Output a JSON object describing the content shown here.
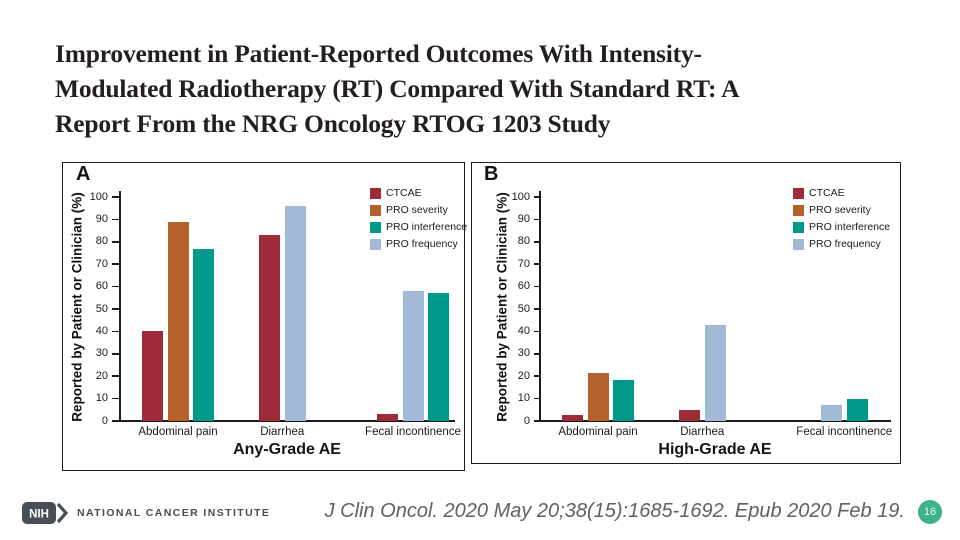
{
  "slide_title": {
    "lines": [
      "Improvement in Patient-Reported Outcomes With Intensity-",
      "Modulated Radiotherapy (RT) Compared With Standard RT: A",
      "Report From the NRG Oncology RTOG 1203 Study"
    ]
  },
  "footer": {
    "logo_acronym": "NIH",
    "logo_text": "NATIONAL CANCER INSTITUTE",
    "citation": "J Clin Oncol. 2020 May 20;38(15):1685-1692. Epub 2020 Feb 19.",
    "page_number": "16"
  },
  "colors": {
    "title_text": "#241e1e",
    "citation_text": "#616161",
    "page_badge": "#3cb389",
    "axis_ink": "#1b1b1b"
  },
  "series_colors": {
    "CTCAE": "#9e2b38",
    "PRO severity": "#b5612c",
    "PRO interference": "#009a8d",
    "PRO frequency": "#a2bad8"
  },
  "chart_data": [
    {
      "type": "bar",
      "panel": "A",
      "title": "",
      "xlabel": "Any-Grade AE",
      "ylabel": "Reported by Patient or Clinician (%)",
      "ylim": [
        0,
        100
      ],
      "yticks": [
        0,
        10,
        20,
        30,
        40,
        50,
        60,
        70,
        80,
        90,
        100
      ],
      "grid": false,
      "legend_position": "upper right",
      "legend": [
        "CTCAE",
        "PRO severity",
        "PRO interference",
        "PRO frequency"
      ],
      "groups": [
        {
          "label": "Abdominal pain",
          "bars": [
            {
              "series": "CTCAE",
              "value": 40
            },
            {
              "series": "PRO severity",
              "value": 89
            },
            {
              "series": "PRO interference",
              "value": 77
            }
          ]
        },
        {
          "label": "Diarrhea",
          "bars": [
            {
              "series": "CTCAE",
              "value": 83
            },
            {
              "series": "PRO frequency",
              "value": 96
            }
          ]
        },
        {
          "label": "Fecal incontinence",
          "bars": [
            {
              "series": "CTCAE",
              "value": 3
            },
            {
              "series": "PRO frequency",
              "value": 58
            },
            {
              "series": "PRO interference",
              "value": 57
            }
          ]
        }
      ]
    },
    {
      "type": "bar",
      "panel": "B",
      "title": "",
      "xlabel": "High-Grade AE",
      "ylabel": "Reported by Patient or Clinician (%)",
      "ylim": [
        0,
        100
      ],
      "yticks": [
        0,
        10,
        20,
        30,
        40,
        50,
        60,
        70,
        80,
        90,
        100
      ],
      "grid": false,
      "legend_position": "upper right",
      "legend": [
        "CTCAE",
        "PRO severity",
        "PRO interference",
        "PRO frequency"
      ],
      "groups": [
        {
          "label": "Abdominal pain",
          "bars": [
            {
              "series": "CTCAE",
              "value": 2.5
            },
            {
              "series": "PRO severity",
              "value": 21.5
            },
            {
              "series": "PRO interference",
              "value": 18.5
            }
          ]
        },
        {
          "label": "Diarrhea",
          "bars": [
            {
              "series": "CTCAE",
              "value": 5
            },
            {
              "series": "PRO frequency",
              "value": 43
            }
          ]
        },
        {
          "label": "Fecal incontinence",
          "bars": [
            {
              "series": "PRO frequency",
              "value": 7
            },
            {
              "series": "PRO interference",
              "value": 10
            }
          ]
        }
      ]
    }
  ]
}
